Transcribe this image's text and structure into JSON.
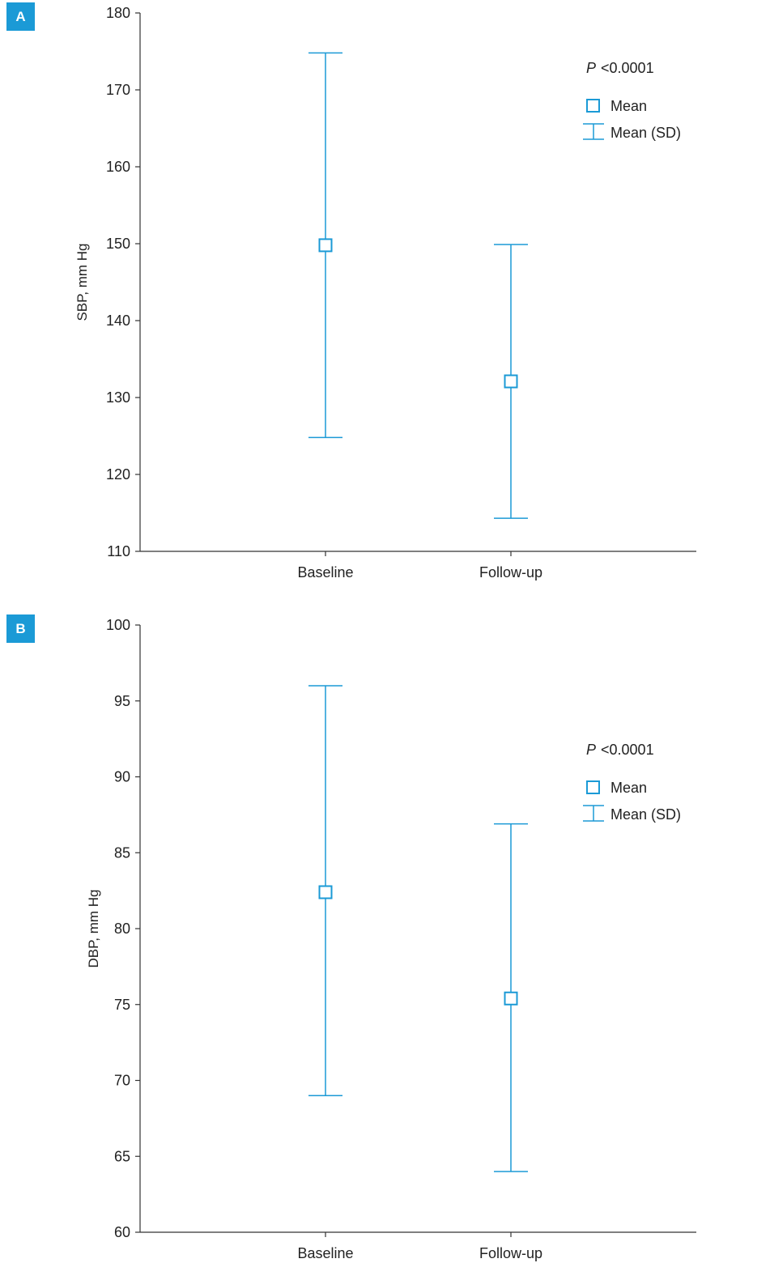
{
  "chart_data": [
    {
      "type": "error-bar",
      "panel_label": "A",
      "ylabel": "SBP, mm Hg",
      "ylim": [
        110,
        180
      ],
      "yticks": [
        110,
        120,
        130,
        140,
        150,
        160,
        170,
        180
      ],
      "categories": [
        "Baseline",
        "Follow-up"
      ],
      "mean": [
        149.8,
        132.1
      ],
      "upper": [
        174.8,
        149.9
      ],
      "lower": [
        124.8,
        114.3
      ],
      "annotation": {
        "p_symbol": "P",
        "p_text": "<0.0001"
      },
      "legend": {
        "placement": "top-right",
        "mean_label": "Mean",
        "sd_label": "Mean (SD)"
      },
      "color": "#1b9ad6"
    },
    {
      "type": "error-bar",
      "panel_label": "B",
      "ylabel": "DBP, mm Hg",
      "ylim": [
        60,
        100
      ],
      "yticks": [
        60,
        65,
        70,
        75,
        80,
        85,
        90,
        95,
        100
      ],
      "categories": [
        "Baseline",
        "Follow-up"
      ],
      "mean": [
        82.4,
        75.4
      ],
      "upper": [
        96.0,
        86.9
      ],
      "lower": [
        69.0,
        64.0
      ],
      "annotation": {
        "p_symbol": "P",
        "p_text": "<0.0001"
      },
      "legend": {
        "placement": "top-right",
        "mean_label": "Mean",
        "sd_label": "Mean (SD)"
      },
      "color": "#1b9ad6"
    }
  ]
}
